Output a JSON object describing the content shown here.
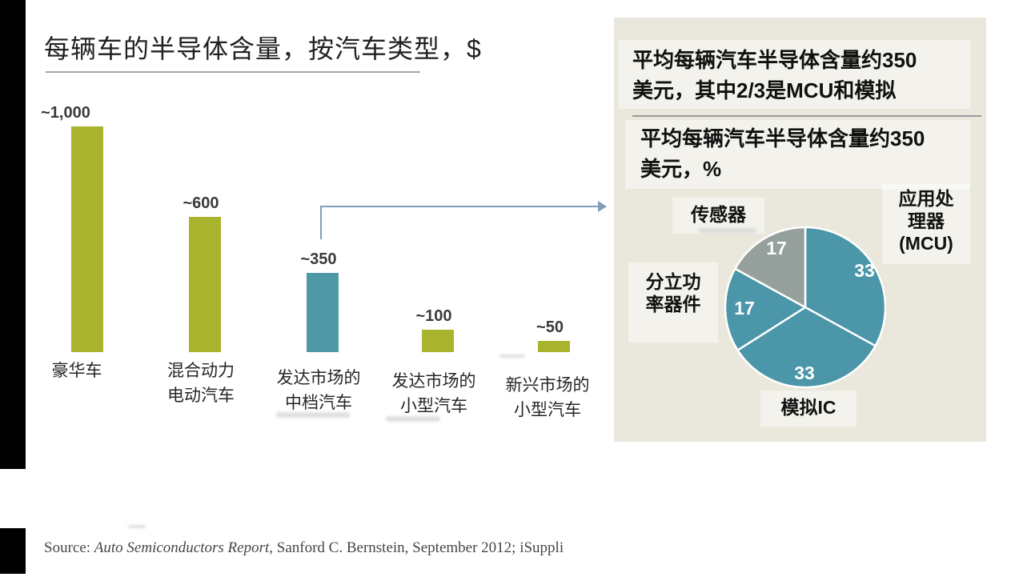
{
  "title": "每辆车的半导体含量，按汽车类型，$",
  "panel": {
    "header_line1": "平均每辆汽车半导体含量约350",
    "header_line2": "美元，其中2/3是MCU和模拟",
    "subheader_line1": "平均每辆汽车半导体含量约350",
    "subheader_line2": "美元，%",
    "labels": {
      "sensor": "传感器",
      "mcu_l1": "应用处",
      "mcu_l2": "理器",
      "mcu_l3": "(MCU)",
      "discrete_l1": "分立功",
      "discrete_l2": "率器件",
      "analog": "模拟IC"
    }
  },
  "source": {
    "prefix": "Source: ",
    "report": "Auto Semiconductors Report",
    "rest": ", Sanford C. Bernstein, September 2012; iSuppli"
  },
  "colors": {
    "olive": "#a9b32d",
    "teal_bar": "#4f98a5",
    "pie_teal": "#4b96a8",
    "pie_gray": "#96a09d",
    "panel_bg": "#eae8dd",
    "arrow": "#7f9db9"
  },
  "chart_data": [
    {
      "type": "bar",
      "title": "每辆车的半导体含量，按汽车类型，$",
      "categories": [
        "豪华车",
        "混合动力电动汽车",
        "发达市场的中档汽车",
        "发达市场的小型汽车",
        "新兴市场的小型汽车"
      ],
      "categories_lines": [
        [
          "豪华车",
          ""
        ],
        [
          "混合动力",
          "电动汽车"
        ],
        [
          "发达市场的",
          "中档汽车"
        ],
        [
          "发达市场的",
          "小型汽车"
        ],
        [
          "新兴市场的",
          "小型汽车"
        ]
      ],
      "values": [
        1000,
        600,
        350,
        100,
        50
      ],
      "value_labels": [
        "~1,000",
        "~600",
        "~350",
        "~100",
        "~50"
      ],
      "colors": [
        "#a9b32d",
        "#a9b32d",
        "#4f98a5",
        "#a9b32d",
        "#a9b32d"
      ],
      "unit": "$",
      "ylim": [
        0,
        1000
      ],
      "grid": false
    },
    {
      "type": "pie",
      "title": "平均每辆汽车半导体含量约350美元，%",
      "labels": [
        "应用处理器(MCU)",
        "模拟IC",
        "分立功率器件",
        "传感器"
      ],
      "values": [
        33,
        33,
        17,
        17
      ],
      "colors": [
        "#4b96a8",
        "#4b96a8",
        "#4b96a8",
        "#96a09d"
      ],
      "start_angle": "12-oclock",
      "direction": "clockwise",
      "legend": "labels-around-pie"
    }
  ]
}
